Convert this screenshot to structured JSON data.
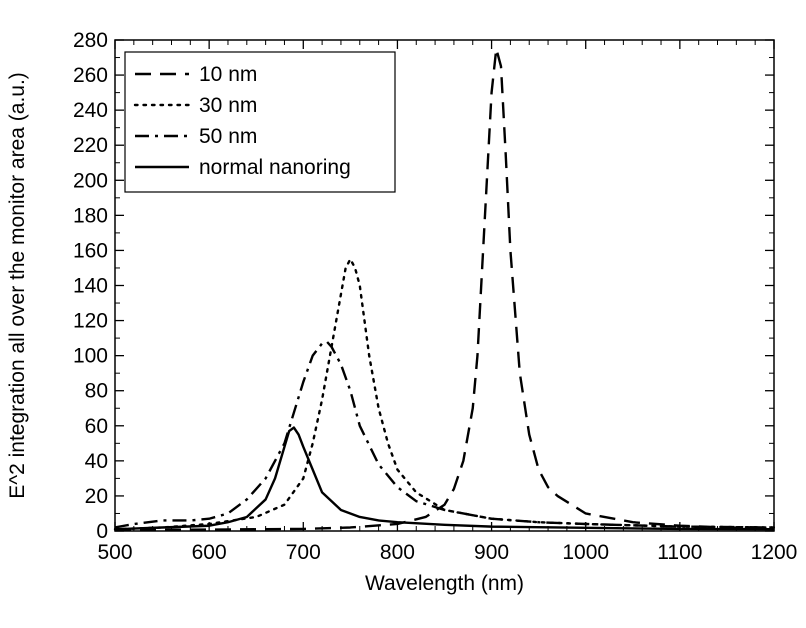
{
  "chart_data": {
    "type": "line",
    "title": "",
    "xlabel": "Wavelength (nm)",
    "ylabel": "E^2 integration all over the monitor area (a.u.)",
    "xlim": [
      500,
      1200
    ],
    "ylim": [
      0,
      280
    ],
    "xticks": [
      500,
      600,
      700,
      800,
      900,
      1000,
      1100,
      1200
    ],
    "yticks": [
      0,
      20,
      40,
      60,
      80,
      100,
      120,
      140,
      160,
      180,
      200,
      220,
      240,
      260,
      280
    ],
    "grid": false,
    "legend_position": "top-left",
    "series": [
      {
        "name": "10 nm",
        "style": "dashed",
        "color": "#000000",
        "x": [
          500,
          600,
          700,
          750,
          800,
          830,
          850,
          860,
          870,
          880,
          885,
          890,
          895,
          900,
          905,
          910,
          915,
          920,
          930,
          940,
          950,
          960,
          970,
          1000,
          1050,
          1100,
          1150,
          1200
        ],
        "y": [
          0.5,
          0.8,
          1.2,
          2,
          4,
          8,
          15,
          24,
          40,
          70,
          100,
          150,
          200,
          250,
          275,
          265,
          215,
          160,
          90,
          55,
          35,
          25,
          20,
          10,
          5,
          3,
          2,
          1.5
        ]
      },
      {
        "name": "30 nm",
        "style": "dotted",
        "color": "#000000",
        "x": [
          500,
          550,
          600,
          650,
          680,
          700,
          710,
          720,
          730,
          740,
          745,
          750,
          755,
          760,
          765,
          770,
          780,
          790,
          800,
          820,
          850,
          900,
          950,
          1000,
          1100,
          1200
        ],
        "y": [
          1,
          2,
          4,
          8,
          15,
          30,
          50,
          75,
          105,
          135,
          150,
          155,
          150,
          140,
          120,
          100,
          70,
          50,
          35,
          22,
          12,
          7,
          5,
          4,
          2.5,
          2
        ]
      },
      {
        "name": "50 nm",
        "style": "dashdot",
        "color": "#000000",
        "x": [
          500,
          520,
          550,
          580,
          600,
          620,
          640,
          660,
          680,
          700,
          710,
          720,
          725,
          730,
          740,
          750,
          760,
          780,
          800,
          820,
          850,
          900,
          950,
          1000,
          1100,
          1200
        ],
        "y": [
          2,
          4,
          6,
          6,
          7,
          10,
          18,
          30,
          50,
          85,
          100,
          107,
          108,
          105,
          95,
          80,
          60,
          38,
          25,
          17,
          12,
          7,
          5,
          4,
          2.5,
          2
        ]
      },
      {
        "name": "normal nanoring",
        "style": "solid",
        "color": "#000000",
        "x": [
          500,
          550,
          600,
          620,
          640,
          660,
          670,
          680,
          685,
          690,
          695,
          700,
          710,
          720,
          740,
          760,
          780,
          800,
          850,
          900,
          1000,
          1100,
          1200
        ],
        "y": [
          1,
          2,
          3,
          5,
          8,
          18,
          30,
          48,
          57,
          59,
          55,
          48,
          35,
          22,
          12,
          8,
          6,
          5,
          3.5,
          2.5,
          1.8,
          1.2,
          1
        ]
      }
    ]
  }
}
